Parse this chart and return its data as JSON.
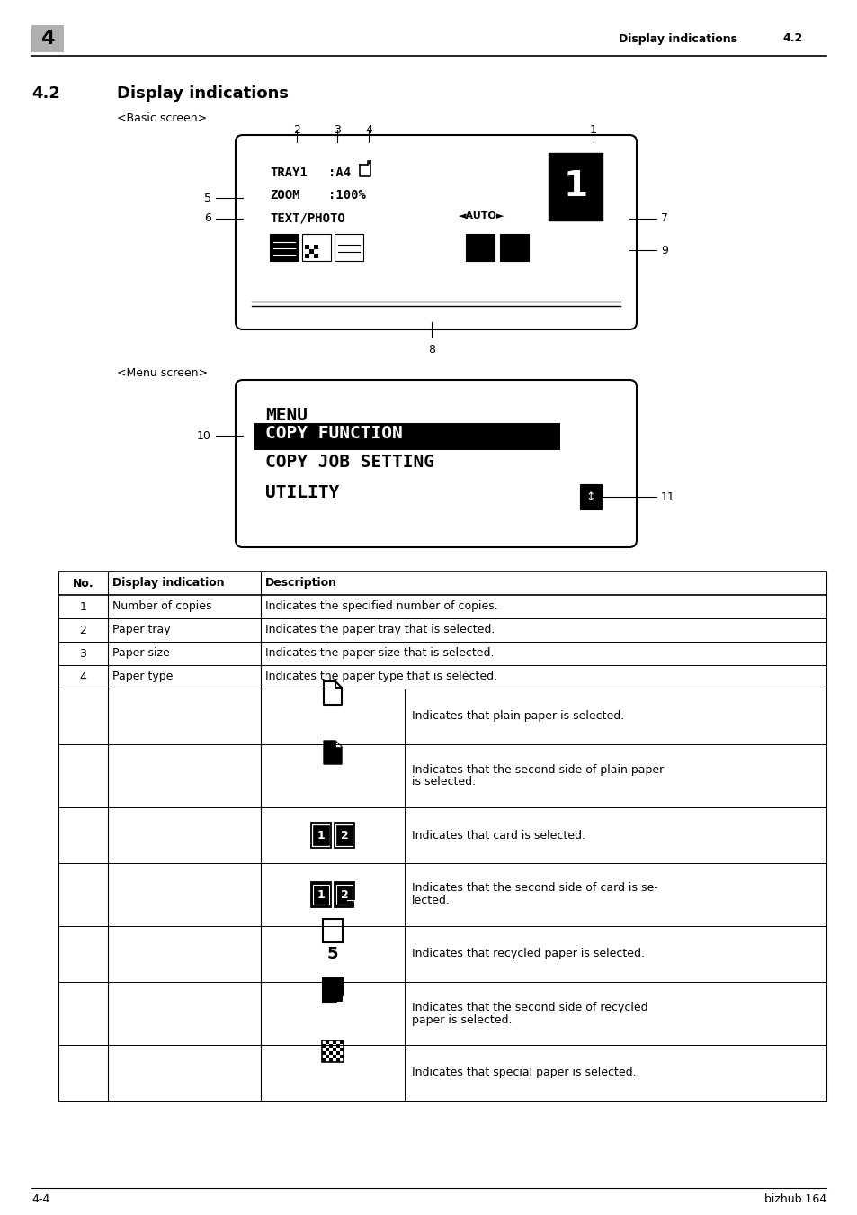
{
  "page_num": "4",
  "header_right": "Display indications",
  "header_section": "4.2",
  "section_num": "4.2",
  "section_title": "Display indications",
  "basic_screen_label": "<Basic screen>",
  "menu_screen_label": "<Menu screen>",
  "footer_left": "4-4",
  "footer_right": "bizhub 164",
  "table_headers": [
    "No.",
    "Display indication",
    "Description"
  ],
  "table_rows": [
    [
      "1",
      "Number of copies",
      "Indicates the specified number of copies."
    ],
    [
      "2",
      "Paper tray",
      "Indicates the paper tray that is selected."
    ],
    [
      "3",
      "Paper size",
      "Indicates the paper size that is selected."
    ],
    [
      "4",
      "Paper type",
      "Indicates the paper type that is selected."
    ]
  ],
  "table_icon_rows": [
    [
      "plain_paper",
      "Indicates that plain paper is selected."
    ],
    [
      "plain_paper_back",
      "Indicates that the second side of plain paper\nis selected."
    ],
    [
      "card",
      "Indicates that card is selected."
    ],
    [
      "card_back",
      "Indicates that the second side of card is se-\nlected."
    ],
    [
      "recycled",
      "Indicates that recycled paper is selected."
    ],
    [
      "recycled_back",
      "Indicates that the second side of recycled\npaper is selected."
    ],
    [
      "special",
      "Indicates that special paper is selected."
    ]
  ],
  "bg_color": "#ffffff"
}
